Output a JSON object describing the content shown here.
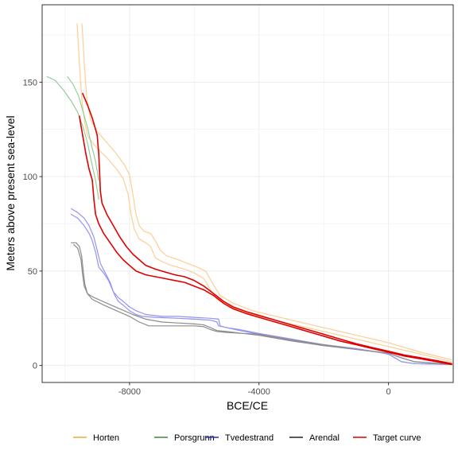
{
  "chart_data": {
    "type": "line",
    "title": "",
    "xlabel": "BCE/CE",
    "ylabel": "Meters above present sea-level",
    "xlim": [
      -10700,
      2000
    ],
    "ylim": [
      -9,
      191
    ],
    "x_ticks": [
      -8000,
      -4000,
      0
    ],
    "x_tick_labels": [
      "-8000",
      "-4000",
      "0"
    ],
    "y_ticks": [
      0,
      50,
      100,
      150
    ],
    "y_tick_labels": [
      "0",
      "50",
      "100",
      "150"
    ],
    "grid": true,
    "legend_position": "bottom",
    "legend": [
      {
        "label": "Horten",
        "color": "#F2A93B"
      },
      {
        "label": "Porsgrunn",
        "color": "#3A8A3A"
      },
      {
        "label": "Tvedestrand",
        "color": "#2A2AC8"
      },
      {
        "label": "Arendal",
        "color": "#222222"
      },
      {
        "label": "Target curve",
        "color": "#E00000"
      }
    ],
    "series": [
      {
        "group": "Horten",
        "color": "#FBCF95",
        "width": 1.2,
        "points": [
          [
            -9620,
            181
          ],
          [
            -9550,
            160
          ],
          [
            -9470,
            140
          ],
          [
            -9380,
            128
          ],
          [
            -9280,
            121
          ],
          [
            -9000,
            115
          ],
          [
            -8700,
            110
          ],
          [
            -8400,
            104
          ],
          [
            -8200,
            99
          ],
          [
            -8050,
            91
          ],
          [
            -7950,
            80
          ],
          [
            -7850,
            72
          ],
          [
            -7700,
            67
          ],
          [
            -7500,
            65
          ],
          [
            -7350,
            63
          ],
          [
            -7200,
            57
          ],
          [
            -7000,
            55
          ],
          [
            -6700,
            53
          ],
          [
            -6300,
            51
          ],
          [
            -6000,
            49
          ],
          [
            -5700,
            46
          ],
          [
            -5500,
            40
          ],
          [
            -5300,
            35
          ],
          [
            -5000,
            32
          ],
          [
            -4600,
            29
          ],
          [
            -4000,
            26
          ],
          [
            -3000,
            22
          ],
          [
            -2000,
            18
          ],
          [
            -1000,
            14
          ],
          [
            0,
            10
          ],
          [
            1000,
            6
          ],
          [
            1950,
            2
          ]
        ]
      },
      {
        "group": "Horten",
        "color": "#FBCF95",
        "width": 1.2,
        "points": [
          [
            -9470,
            181
          ],
          [
            -9400,
            160
          ],
          [
            -9320,
            141
          ],
          [
            -9200,
            130
          ],
          [
            -9000,
            124
          ],
          [
            -8700,
            118
          ],
          [
            -8400,
            112
          ],
          [
            -8150,
            106
          ],
          [
            -8000,
            101
          ],
          [
            -7900,
            91
          ],
          [
            -7800,
            80
          ],
          [
            -7700,
            74
          ],
          [
            -7550,
            71
          ],
          [
            -7350,
            70
          ],
          [
            -7200,
            66
          ],
          [
            -7050,
            61
          ],
          [
            -6850,
            58
          ],
          [
            -6500,
            56
          ],
          [
            -6200,
            54
          ],
          [
            -5900,
            52
          ],
          [
            -5650,
            50
          ],
          [
            -5450,
            44
          ],
          [
            -5200,
            37
          ],
          [
            -4800,
            33
          ],
          [
            -4200,
            29
          ],
          [
            -3000,
            24
          ],
          [
            -2000,
            20
          ],
          [
            -1000,
            16
          ],
          [
            0,
            12
          ],
          [
            1000,
            7
          ],
          [
            1950,
            3
          ]
        ]
      },
      {
        "group": "Porsgrunn",
        "color": "#9ACB9A",
        "width": 1.2,
        "points": [
          [
            -10550,
            153
          ],
          [
            -10300,
            151
          ],
          [
            -10050,
            146
          ],
          [
            -9800,
            140
          ],
          [
            -9600,
            134
          ],
          [
            -9450,
            127
          ],
          [
            -9300,
            118
          ],
          [
            -9180,
            108
          ],
          [
            -9050,
            98
          ],
          [
            -8950,
            88
          ]
        ]
      },
      {
        "group": "Porsgrunn",
        "color": "#9ACB9A",
        "width": 1.2,
        "points": [
          [
            -9920,
            153
          ],
          [
            -9750,
            149
          ],
          [
            -9580,
            143
          ],
          [
            -9430,
            134
          ],
          [
            -9300,
            126
          ],
          [
            -9180,
            117
          ],
          [
            -9050,
            108
          ],
          [
            -8950,
            98
          ]
        ]
      },
      {
        "group": "Tvedestrand",
        "color": "#9494F2",
        "width": 1.2,
        "points": [
          [
            -9800,
            83
          ],
          [
            -9600,
            81
          ],
          [
            -9400,
            78
          ],
          [
            -9250,
            74
          ],
          [
            -9100,
            68
          ],
          [
            -9000,
            61
          ],
          [
            -8900,
            54
          ],
          [
            -8750,
            49
          ],
          [
            -8600,
            44
          ],
          [
            -8500,
            39
          ],
          [
            -8350,
            36
          ],
          [
            -8200,
            34
          ],
          [
            -8000,
            31
          ],
          [
            -7800,
            29
          ],
          [
            -7500,
            27
          ],
          [
            -7000,
            26
          ],
          [
            -6500,
            26
          ],
          [
            -6000,
            25.5
          ],
          [
            -5500,
            25
          ],
          [
            -5250,
            24.5
          ],
          [
            -5200,
            21
          ],
          [
            -5000,
            20
          ],
          [
            -4600,
            19
          ],
          [
            -4000,
            17
          ],
          [
            -3000,
            14
          ],
          [
            -2000,
            11
          ],
          [
            -1000,
            9
          ],
          [
            -300,
            7
          ],
          [
            0,
            6
          ],
          [
            200,
            4
          ],
          [
            400,
            2
          ],
          [
            800,
            1
          ],
          [
            1950,
            0.5
          ]
        ]
      },
      {
        "group": "Tvedestrand",
        "color": "#9494F2",
        "width": 1.2,
        "points": [
          [
            -9800,
            80
          ],
          [
            -9600,
            78
          ],
          [
            -9400,
            74
          ],
          [
            -9250,
            70
          ],
          [
            -9150,
            66
          ],
          [
            -9050,
            60
          ],
          [
            -8950,
            52
          ],
          [
            -8900,
            51
          ],
          [
            -8800,
            49
          ],
          [
            -8650,
            45
          ],
          [
            -8550,
            41
          ],
          [
            -8450,
            37
          ],
          [
            -8350,
            34
          ],
          [
            -8200,
            32
          ],
          [
            -8000,
            29
          ],
          [
            -7800,
            27
          ],
          [
            -7600,
            26
          ],
          [
            -7200,
            25.5
          ],
          [
            -6500,
            25
          ],
          [
            -6000,
            24.5
          ],
          [
            -5500,
            24
          ],
          [
            -5300,
            23
          ],
          [
            -5250,
            21
          ],
          [
            -5000,
            20
          ],
          [
            -4600,
            18.5
          ],
          [
            -4000,
            16.5
          ],
          [
            -3000,
            13.5
          ],
          [
            -2000,
            10.5
          ],
          [
            -1000,
            8.5
          ],
          [
            -300,
            7
          ],
          [
            0,
            6
          ],
          [
            200,
            4
          ],
          [
            400,
            2
          ],
          [
            800,
            1
          ],
          [
            1950,
            0.5
          ]
        ]
      },
      {
        "group": "Arendal",
        "color": "#8C8C8C",
        "width": 1.2,
        "points": [
          [
            -9800,
            65
          ],
          [
            -9650,
            65
          ],
          [
            -9550,
            63
          ],
          [
            -9480,
            58
          ],
          [
            -9430,
            50
          ],
          [
            -9380,
            43
          ],
          [
            -9300,
            38
          ],
          [
            -9150,
            35
          ],
          [
            -8800,
            32
          ],
          [
            -8400,
            29
          ],
          [
            -8000,
            26
          ],
          [
            -7700,
            23
          ],
          [
            -7400,
            21
          ],
          [
            -7000,
            21
          ],
          [
            -6500,
            21
          ],
          [
            -6000,
            21
          ],
          [
            -5700,
            20.5
          ],
          [
            -5500,
            19
          ],
          [
            -5300,
            18
          ],
          [
            -5000,
            17.5
          ],
          [
            -4500,
            17
          ],
          [
            -4000,
            16
          ],
          [
            -3000,
            13
          ],
          [
            -2000,
            10.5
          ],
          [
            -1000,
            8.5
          ],
          [
            0,
            6.5
          ],
          [
            400,
            4
          ],
          [
            800,
            2
          ],
          [
            1950,
            0.5
          ]
        ]
      },
      {
        "group": "Arendal",
        "color": "#8C8C8C",
        "width": 1.2,
        "points": [
          [
            -9720,
            64
          ],
          [
            -9600,
            62
          ],
          [
            -9500,
            56
          ],
          [
            -9450,
            48
          ],
          [
            -9400,
            42
          ],
          [
            -9300,
            38
          ],
          [
            -9100,
            36
          ],
          [
            -8700,
            33
          ],
          [
            -8300,
            30
          ],
          [
            -7900,
            27
          ],
          [
            -7500,
            24.5
          ],
          [
            -7000,
            23
          ],
          [
            -6500,
            22.5
          ],
          [
            -6000,
            22
          ],
          [
            -5700,
            21.5
          ],
          [
            -5500,
            20
          ],
          [
            -5300,
            18.5
          ],
          [
            -5000,
            18
          ],
          [
            -4500,
            17
          ],
          [
            -4000,
            16.5
          ],
          [
            -3000,
            13.5
          ],
          [
            -2000,
            11
          ],
          [
            -1000,
            8.5
          ],
          [
            0,
            6.5
          ],
          [
            400,
            4
          ],
          [
            800,
            2
          ],
          [
            1950,
            0.5
          ]
        ]
      },
      {
        "group": "Target curve",
        "color": "#E00000",
        "width": 1.6,
        "points": [
          [
            -9550,
            132
          ],
          [
            -9450,
            122
          ],
          [
            -9350,
            112
          ],
          [
            -9250,
            104
          ],
          [
            -9150,
            98
          ],
          [
            -9100,
            88
          ],
          [
            -9050,
            80
          ],
          [
            -8950,
            75
          ],
          [
            -8800,
            70
          ],
          [
            -8600,
            65
          ],
          [
            -8400,
            60
          ],
          [
            -8200,
            56
          ],
          [
            -8000,
            53
          ],
          [
            -7800,
            50
          ],
          [
            -7500,
            48
          ],
          [
            -7200,
            47
          ],
          [
            -6900,
            46
          ],
          [
            -6600,
            45
          ],
          [
            -6300,
            44
          ],
          [
            -6000,
            42
          ],
          [
            -5700,
            40
          ],
          [
            -5400,
            37
          ],
          [
            -5100,
            33
          ],
          [
            -4800,
            30
          ],
          [
            -4400,
            27.5
          ],
          [
            -4000,
            25.5
          ],
          [
            -3500,
            23
          ],
          [
            -3000,
            20.5
          ],
          [
            -2500,
            18
          ],
          [
            -2000,
            15.5
          ],
          [
            -1500,
            13
          ],
          [
            -1000,
            11
          ],
          [
            -500,
            9
          ],
          [
            0,
            7
          ],
          [
            500,
            5
          ],
          [
            1000,
            3.5
          ],
          [
            1500,
            2
          ],
          [
            1950,
            0.5
          ]
        ]
      },
      {
        "group": "Target curve",
        "color": "#E00000",
        "width": 1.6,
        "points": [
          [
            -9450,
            144
          ],
          [
            -9300,
            138
          ],
          [
            -9150,
            131
          ],
          [
            -9000,
            122
          ],
          [
            -8950,
            112
          ],
          [
            -8920,
            100
          ],
          [
            -8900,
            92
          ],
          [
            -8850,
            86
          ],
          [
            -8700,
            80
          ],
          [
            -8500,
            74
          ],
          [
            -8300,
            68
          ],
          [
            -8100,
            63
          ],
          [
            -7900,
            59
          ],
          [
            -7700,
            56
          ],
          [
            -7500,
            53
          ],
          [
            -7200,
            51
          ],
          [
            -6900,
            49.5
          ],
          [
            -6600,
            48
          ],
          [
            -6300,
            47
          ],
          [
            -6000,
            45
          ],
          [
            -5700,
            42
          ],
          [
            -5400,
            38
          ],
          [
            -5100,
            34
          ],
          [
            -4800,
            31
          ],
          [
            -4400,
            28.5
          ],
          [
            -4000,
            26.5
          ],
          [
            -3500,
            24
          ],
          [
            -3000,
            21.5
          ],
          [
            -2500,
            19
          ],
          [
            -2000,
            16.5
          ],
          [
            -1500,
            14
          ],
          [
            -1000,
            11.5
          ],
          [
            -500,
            9.5
          ],
          [
            0,
            7.5
          ],
          [
            500,
            5.5
          ],
          [
            1000,
            4
          ],
          [
            1500,
            2.5
          ],
          [
            1950,
            1
          ]
        ]
      }
    ]
  }
}
